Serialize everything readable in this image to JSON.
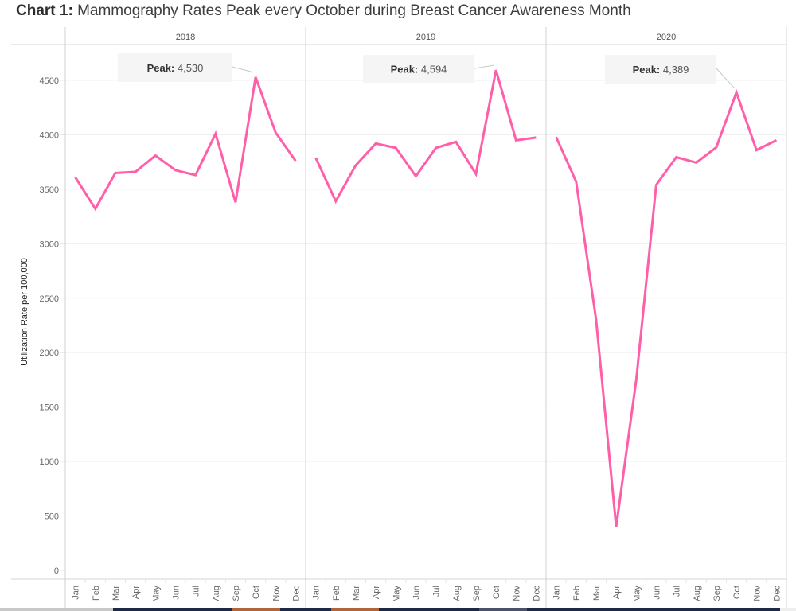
{
  "title": {
    "prefix": "Chart 1:",
    "text": "Mammography Rates Peak every October during Breast Cancer Awareness Month"
  },
  "colors": {
    "line": "#ff5fa8",
    "grid": "#f0f0f0",
    "panel_border": "#d0d0d0",
    "callout_bg": "#f5f5f5",
    "bottom_bar_navy": "#1e2a45",
    "bottom_bar_orange": "#b0663a",
    "bottom_bar_gray": "#4a5168"
  },
  "chart_data": {
    "type": "line",
    "title": "Chart 1: Mammography Rates Peak every October during Breast Cancer Awareness Month",
    "xlabel": "",
    "ylabel": "Utilization Rate per 100,000",
    "ylim": [
      0,
      4750
    ],
    "yticks": [
      0,
      500,
      1000,
      1500,
      2000,
      2500,
      3000,
      3500,
      4000,
      4500
    ],
    "grid": true,
    "legend": "none",
    "panels": [
      "2018",
      "2019",
      "2020"
    ],
    "categories": [
      "Jan",
      "Feb",
      "Mar",
      "Apr",
      "May",
      "Jun",
      "Jul",
      "Aug",
      "Sep",
      "Oct",
      "Nov",
      "Dec"
    ],
    "series": [
      {
        "name": "2018",
        "values": [
          3610,
          3320,
          3650,
          3660,
          3810,
          3675,
          3630,
          4010,
          3380,
          4530,
          4020,
          3760
        ]
      },
      {
        "name": "2019",
        "values": [
          3790,
          3390,
          3720,
          3920,
          3880,
          3620,
          3880,
          3935,
          3640,
          4594,
          3950,
          3975
        ]
      },
      {
        "name": "2020",
        "values": [
          3980,
          3570,
          2300,
          400,
          1750,
          3540,
          3795,
          3745,
          3885,
          4389,
          3860,
          3950
        ]
      }
    ],
    "annotations": [
      {
        "panel": "2018",
        "label": "Peak:",
        "value": "4,530",
        "month": "Oct"
      },
      {
        "panel": "2019",
        "label": "Peak:",
        "value": "4,594",
        "month": "Oct"
      },
      {
        "panel": "2020",
        "label": "Peak:",
        "value": "4,389",
        "month": "Oct"
      }
    ]
  }
}
